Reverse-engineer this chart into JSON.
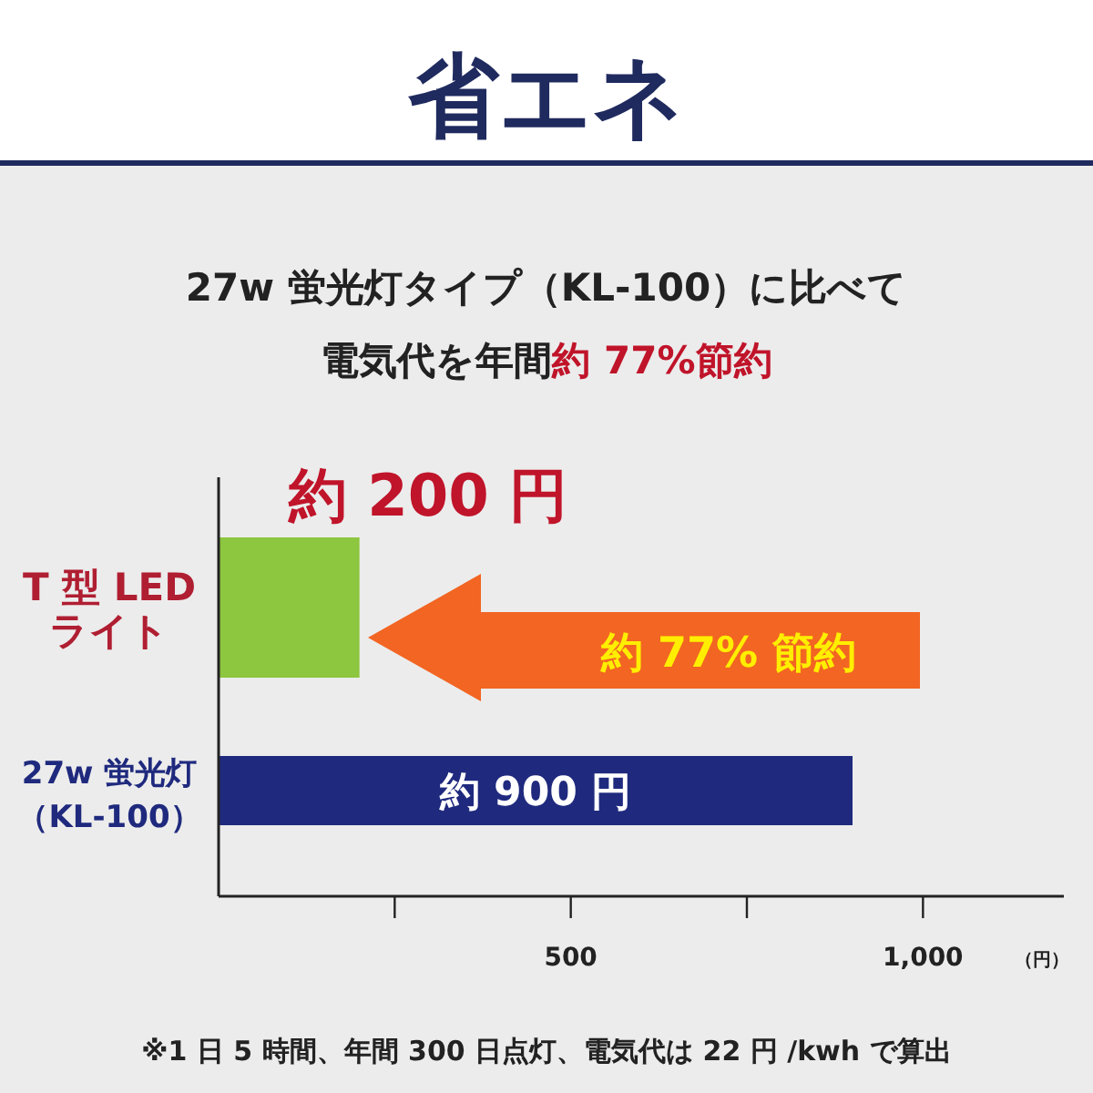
{
  "chart_data": {
    "type": "bar",
    "orientation": "horizontal",
    "title": "省エネ",
    "subtitle": "27w 蛍光灯タイプ（KL-100）に比べて電気代を年間**約 77%節約**",
    "categories": [
      "T 型 LEDライト",
      "27w 蛍光灯（KL-100）"
    ],
    "values": [
      200,
      900
    ],
    "colors": [
      "#8dc63f",
      "#1f2a7e"
    ],
    "value_labels": [
      "約 200 円",
      "約 900 円"
    ],
    "xlim": [
      0,
      1200
    ],
    "xticks": [
      {
        "value": 250,
        "label": null
      },
      500,
      {
        "value": 750,
        "label": null
      },
      {
        "value": 1000,
        "label": "1,000"
      }
    ],
    "xlabel": "（円）",
    "annotations": [
      "約 77% 節約",
      "※1 日 5 時間、年間 300 日点灯、電気代は 22 円 /kwh で算出"
    ]
  }
}
